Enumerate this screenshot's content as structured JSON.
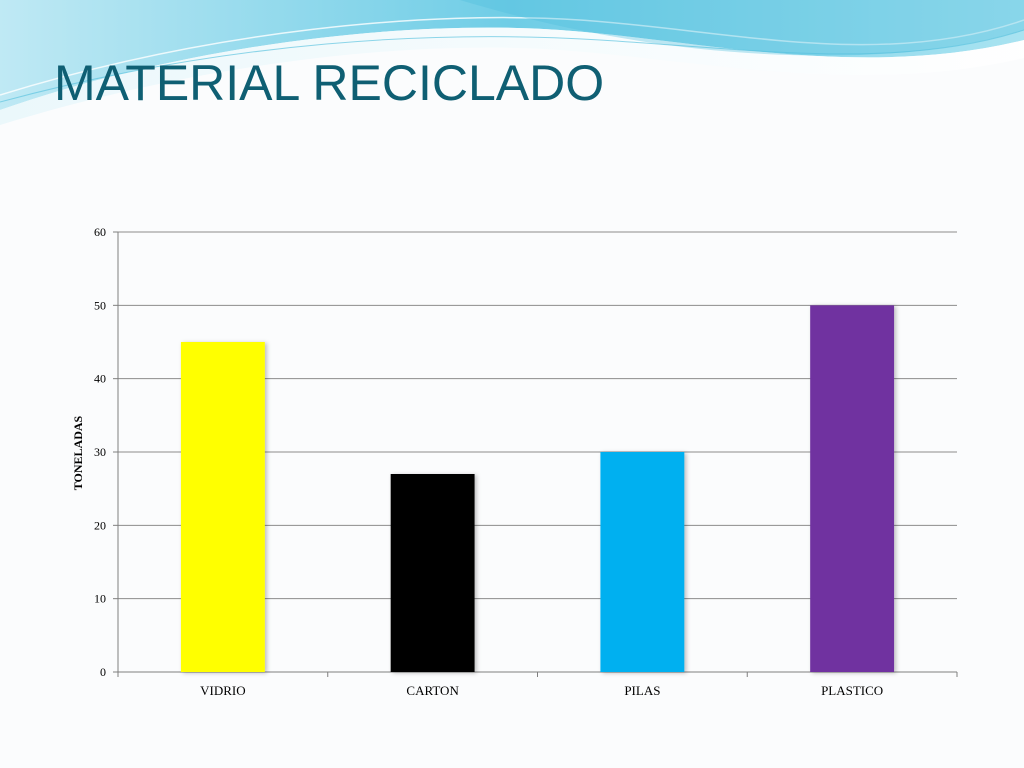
{
  "slide": {
    "title": "MATERIAL RECICLADO"
  },
  "colors": {
    "title": "#0f5f73",
    "banner_light": "#d8f2f8",
    "banner_mid": "#7fd3e8",
    "banner_dark": "#2fb4d6"
  },
  "chart_data": {
    "type": "bar",
    "categories": [
      "VIDRIO",
      "CARTON",
      "PILAS",
      "PLASTICO"
    ],
    "values": [
      45,
      27,
      30,
      50
    ],
    "bar_colors": [
      "#ffff00",
      "#000000",
      "#00b0f0",
      "#7030a0"
    ],
    "title": "",
    "xlabel": "",
    "ylabel": "TONELADAS",
    "ylim": [
      0,
      60
    ],
    "yticks": [
      0,
      10,
      20,
      30,
      40,
      50,
      60
    ],
    "grid": true,
    "legend": "none"
  }
}
